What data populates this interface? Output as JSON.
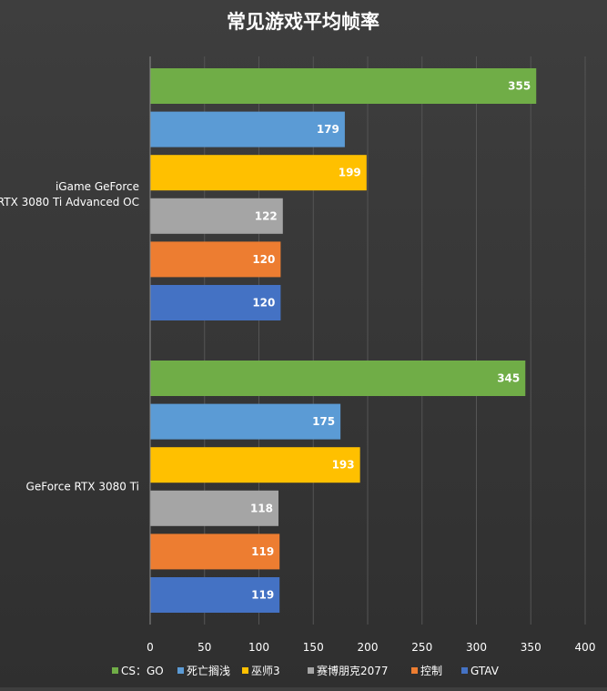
{
  "chart_data": {
    "type": "bar",
    "orientation": "horizontal",
    "title": "常见游戏平均帧率",
    "categories": [
      "iGame GeForce\nRTX 3080 Ti Advanced OC",
      "GeForce RTX 3080 Ti"
    ],
    "series": [
      {
        "name": "CS：GO",
        "color": "#70ad47",
        "values": [
          355,
          345
        ]
      },
      {
        "name": "死亡搁浅",
        "color": "#5b9bd5",
        "values": [
          179,
          175
        ]
      },
      {
        "name": "巫师3",
        "color": "#ffc000",
        "values": [
          199,
          193
        ]
      },
      {
        "name": "赛博朋克2077",
        "color": "#a5a5a5",
        "values": [
          122,
          118
        ]
      },
      {
        "name": "控制",
        "color": "#ed7d31",
        "values": [
          120,
          119
        ]
      },
      {
        "name": "GTAV",
        "color": "#4472c4",
        "values": [
          120,
          119
        ]
      }
    ],
    "xlim": [
      0,
      400
    ],
    "xticks": [
      0,
      50,
      100,
      150,
      200,
      250,
      300,
      350,
      400
    ],
    "grid": true,
    "legend": "bottom",
    "colors": {
      "background": "#363636",
      "grid": "#555555",
      "text": "#ffffff"
    }
  }
}
